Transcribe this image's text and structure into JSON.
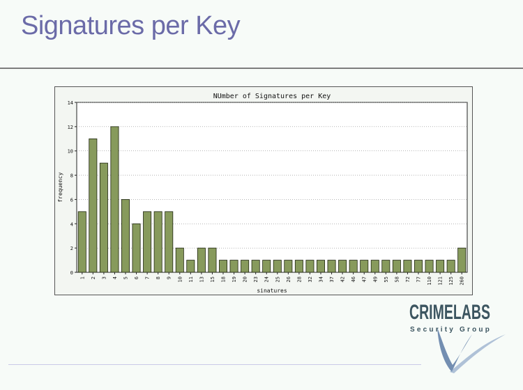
{
  "page": {
    "title": "Signatures per Key"
  },
  "logo": {
    "name": "CRIMELABS",
    "tagline": "Security Group",
    "colors": {
      "text": "#3c5560",
      "swoosh": "#5c7aa5"
    }
  },
  "chart_data": {
    "type": "bar",
    "title": "NUmber of Signatures per Key",
    "xlabel": "sinatures",
    "ylabel": "frequency",
    "categories": [
      "1",
      "2",
      "3",
      "4",
      "5",
      "6",
      "7",
      "8",
      "9",
      "10",
      "11",
      "13",
      "15",
      "18",
      "19",
      "20",
      "23",
      "24",
      "25",
      "26",
      "28",
      "32",
      "34",
      "37",
      "42",
      "46",
      "47",
      "49",
      "55",
      "58",
      "72",
      "77",
      "110",
      "121",
      "125",
      "260"
    ],
    "values": [
      5,
      11,
      9,
      12,
      6,
      4,
      5,
      5,
      5,
      2,
      1,
      2,
      2,
      1,
      1,
      1,
      1,
      1,
      1,
      1,
      1,
      1,
      1,
      1,
      1,
      1,
      1,
      1,
      1,
      1,
      1,
      1,
      1,
      1,
      1,
      2
    ],
    "ylim": [
      0,
      14
    ],
    "yticks": [
      0,
      2,
      4,
      6,
      8,
      10,
      12,
      14
    ],
    "grid": true,
    "colors": {
      "bar": "#879a5c",
      "bar_edge": "#1e2410",
      "grid": "#8a8a8a",
      "plot_bg": "#ffffff"
    }
  }
}
